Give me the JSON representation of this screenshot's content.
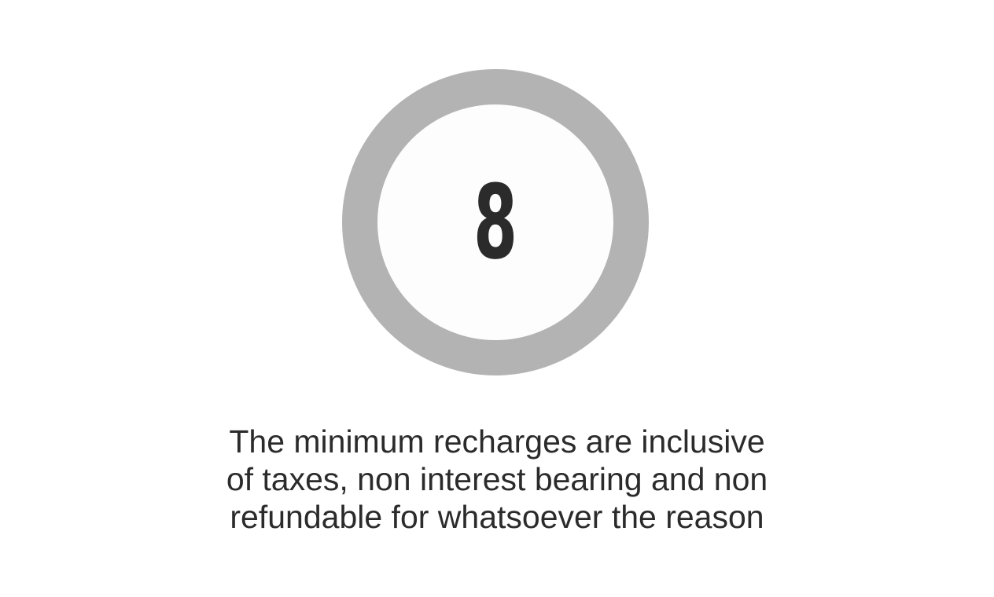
{
  "step": {
    "number": "8"
  },
  "caption": {
    "lines": [
      "The minimum recharges are inclusive",
      "of taxes, non interest bearing and non",
      "refundable for whatsoever the reason"
    ]
  },
  "colors": {
    "ring": "#b2b3b2",
    "text": "#2b2b2b",
    "background": "#ffffff"
  }
}
